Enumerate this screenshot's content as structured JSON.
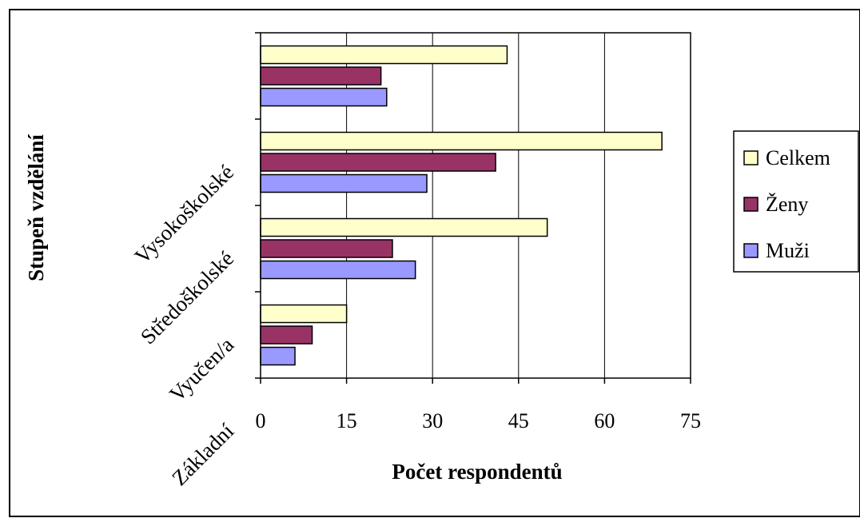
{
  "chart_data": {
    "type": "bar",
    "orientation": "horizontal",
    "categories": [
      "Základní",
      "Vyučen/a",
      "Středoškolské",
      "Vysokoškolské"
    ],
    "series": [
      {
        "name": "Muži",
        "values": [
          6,
          27,
          29,
          22
        ],
        "color": "#9999ff"
      },
      {
        "name": "Ženy",
        "values": [
          9,
          23,
          41,
          21
        ],
        "color": "#993366"
      },
      {
        "name": "Celkem",
        "values": [
          15,
          50,
          70,
          43
        ],
        "color": "#ffffcc"
      }
    ],
    "xlabel": "Počet respondentů",
    "ylabel": "Stupeň vzdělání",
    "xlim": [
      0,
      75
    ],
    "xticks": [
      0,
      15,
      30,
      45,
      60,
      75
    ],
    "xtick_labels": [
      "0",
      "15",
      "30",
      "45",
      "60",
      "75"
    ],
    "grid": "vertical",
    "legend_position": "right",
    "legend_order": [
      "Celkem",
      "Ženy",
      "Muži"
    ]
  }
}
